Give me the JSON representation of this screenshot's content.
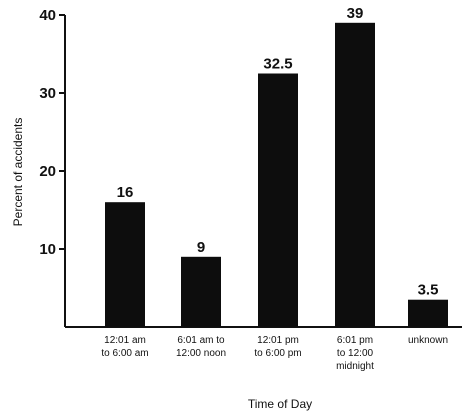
{
  "chart_data": {
    "type": "bar",
    "categories": [
      [
        "12:01 am",
        "to 6:00 am"
      ],
      [
        "6:01 am to",
        "12:00 noon"
      ],
      [
        "12:01 pm",
        "to 6:00 pm"
      ],
      [
        "6:01 pm",
        "to 12:00",
        "midnight"
      ],
      [
        "unknown"
      ]
    ],
    "values": [
      16,
      9,
      32.5,
      39,
      3.5
    ],
    "value_labels": [
      "16",
      "9",
      "32.5",
      "39",
      "3.5"
    ],
    "yticks": [
      "10",
      "20",
      "30",
      "40"
    ],
    "title": "",
    "xlabel": "Time of Day",
    "ylabel": "Percent of accidents",
    "ylim": [
      0,
      40
    ],
    "grid": false,
    "bar_color": "#0d0d0d"
  }
}
